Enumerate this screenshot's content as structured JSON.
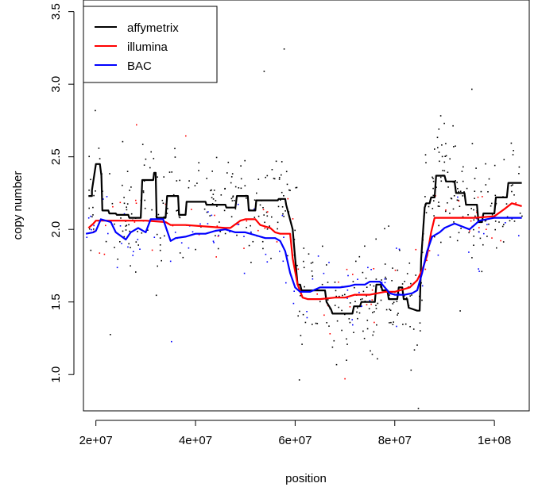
{
  "chart_data": {
    "type": "line",
    "title": "",
    "xlabel": "position",
    "ylabel": "copy number",
    "xlim": [
      17500000,
      107000000
    ],
    "ylim": [
      0.75,
      3.58
    ],
    "x_ticks": [
      20000000,
      40000000,
      60000000,
      80000000,
      100000000
    ],
    "x_tick_labels": [
      "2e+07",
      "4e+07",
      "6e+07",
      "8e+07",
      "1e+08"
    ],
    "y_ticks": [
      1.0,
      1.5,
      2.0,
      2.5,
      3.0,
      3.5
    ],
    "y_tick_labels": [
      "1.0",
      "1.5",
      "2.0",
      "2.5",
      "3.0",
      "3.5"
    ],
    "grid": false,
    "legend_position": "top-left",
    "series": [
      {
        "name": "affymetrix",
        "color": "#000000",
        "x": [
          18500000,
          19200000,
          19200000,
          20000000,
          20800000,
          21100000,
          21300000,
          22500000,
          22700000,
          24000000,
          24200000,
          26500000,
          26700000,
          29000000,
          29300000,
          31500000,
          31700000,
          32000000,
          32200000,
          34000000,
          34300000,
          36500000,
          36700000,
          38000000,
          38200000,
          42000000,
          42200000,
          46000000,
          46200000,
          48000000,
          48300000,
          50500000,
          50700000,
          52000000,
          52200000,
          56500000,
          56700000,
          58000000,
          58200000,
          59500000,
          60000000,
          60500000,
          61000000,
          61300000,
          66000000,
          66300000,
          67200000,
          67500000,
          71500000,
          71800000,
          73000000,
          73300000,
          76000000,
          76300000,
          77200000,
          77500000,
          78500000,
          78800000,
          80500000,
          80800000,
          81500000,
          81800000,
          82500000,
          82800000,
          84500000,
          85000000,
          85300000,
          86000000,
          86300000,
          87000000,
          87300000,
          88000000,
          88300000,
          90000000,
          90300000,
          92000000,
          92300000,
          94000000,
          94300000,
          96500000,
          96800000,
          97500000,
          97800000,
          100000000,
          100300000,
          102500000,
          102800000,
          105500000
        ],
        "y": [
          2.23,
          2.23,
          2.27,
          2.45,
          2.45,
          2.37,
          2.13,
          2.13,
          2.11,
          2.11,
          2.1,
          2.1,
          2.08,
          2.08,
          2.34,
          2.34,
          2.39,
          2.39,
          2.08,
          2.08,
          2.23,
          2.23,
          2.1,
          2.1,
          2.19,
          2.19,
          2.17,
          2.17,
          2.15,
          2.15,
          2.23,
          2.23,
          2.13,
          2.13,
          2.2,
          2.2,
          2.21,
          2.21,
          2.17,
          2.0,
          1.8,
          1.62,
          1.62,
          1.58,
          1.58,
          1.5,
          1.45,
          1.42,
          1.42,
          1.47,
          1.47,
          1.5,
          1.5,
          1.62,
          1.62,
          1.58,
          1.58,
          1.52,
          1.52,
          1.6,
          1.6,
          1.52,
          1.52,
          1.46,
          1.44,
          1.44,
          1.8,
          2.15,
          2.18,
          2.18,
          2.22,
          2.22,
          2.37,
          2.37,
          2.33,
          2.33,
          2.25,
          2.25,
          2.17,
          2.17,
          2.05,
          2.05,
          2.11,
          2.11,
          2.22,
          2.22,
          2.32,
          2.32
        ]
      },
      {
        "name": "illumina",
        "color": "#ff0000",
        "x": [
          18500000,
          19500000,
          20000000,
          23000000,
          30000000,
          34000000,
          35000000,
          38000000,
          42000000,
          46000000,
          47000000,
          49000000,
          50000000,
          52000000,
          53000000,
          55000000,
          56000000,
          57000000,
          58000000,
          59000000,
          59500000,
          60500000,
          61500000,
          62500000,
          65000000,
          68000000,
          70000000,
          72000000,
          75000000,
          78000000,
          80000000,
          81000000,
          83000000,
          84500000,
          85500000,
          86500000,
          87300000,
          88000000,
          92000000,
          96000000,
          100000000,
          102000000,
          103500000,
          105500000
        ],
        "y": [
          2.01,
          2.04,
          2.06,
          2.06,
          2.06,
          2.05,
          2.03,
          2.03,
          2.02,
          2.01,
          2.01,
          2.06,
          2.07,
          2.07,
          2.03,
          2.01,
          1.98,
          1.97,
          1.97,
          1.97,
          1.8,
          1.62,
          1.53,
          1.52,
          1.52,
          1.53,
          1.53,
          1.55,
          1.55,
          1.57,
          1.57,
          1.58,
          1.6,
          1.65,
          1.72,
          1.82,
          1.98,
          2.08,
          2.08,
          2.08,
          2.09,
          2.14,
          2.18,
          2.16
        ]
      },
      {
        "name": "BAC",
        "color": "#0000ff",
        "x": [
          18000000,
          19500000,
          20000000,
          21000000,
          23000000,
          24000000,
          26000000,
          27000000,
          28500000,
          30000000,
          31000000,
          33500000,
          35000000,
          36000000,
          38000000,
          40000000,
          42000000,
          44000000,
          46000000,
          48000000,
          50000000,
          52000000,
          54000000,
          56000000,
          57000000,
          58000000,
          59000000,
          60000000,
          61000000,
          63000000,
          65000000,
          67000000,
          69000000,
          71000000,
          72000000,
          74000000,
          75000000,
          77000000,
          79000000,
          80000000,
          82000000,
          83500000,
          84500000,
          85500000,
          86500000,
          87500000,
          89000000,
          90000000,
          92000000,
          95000000,
          97000000,
          100000000,
          105500000
        ],
        "y": [
          1.97,
          1.98,
          1.99,
          2.07,
          2.05,
          1.98,
          1.93,
          1.98,
          2.01,
          1.98,
          2.07,
          2.07,
          1.92,
          1.94,
          1.95,
          1.97,
          1.97,
          1.99,
          2.0,
          1.98,
          1.98,
          1.96,
          1.94,
          1.94,
          1.92,
          1.85,
          1.7,
          1.6,
          1.57,
          1.57,
          1.6,
          1.6,
          1.6,
          1.61,
          1.62,
          1.62,
          1.64,
          1.64,
          1.56,
          1.55,
          1.55,
          1.56,
          1.58,
          1.7,
          1.85,
          1.95,
          1.98,
          2.01,
          2.04,
          2.0,
          2.06,
          2.08,
          2.08
        ]
      }
    ]
  }
}
